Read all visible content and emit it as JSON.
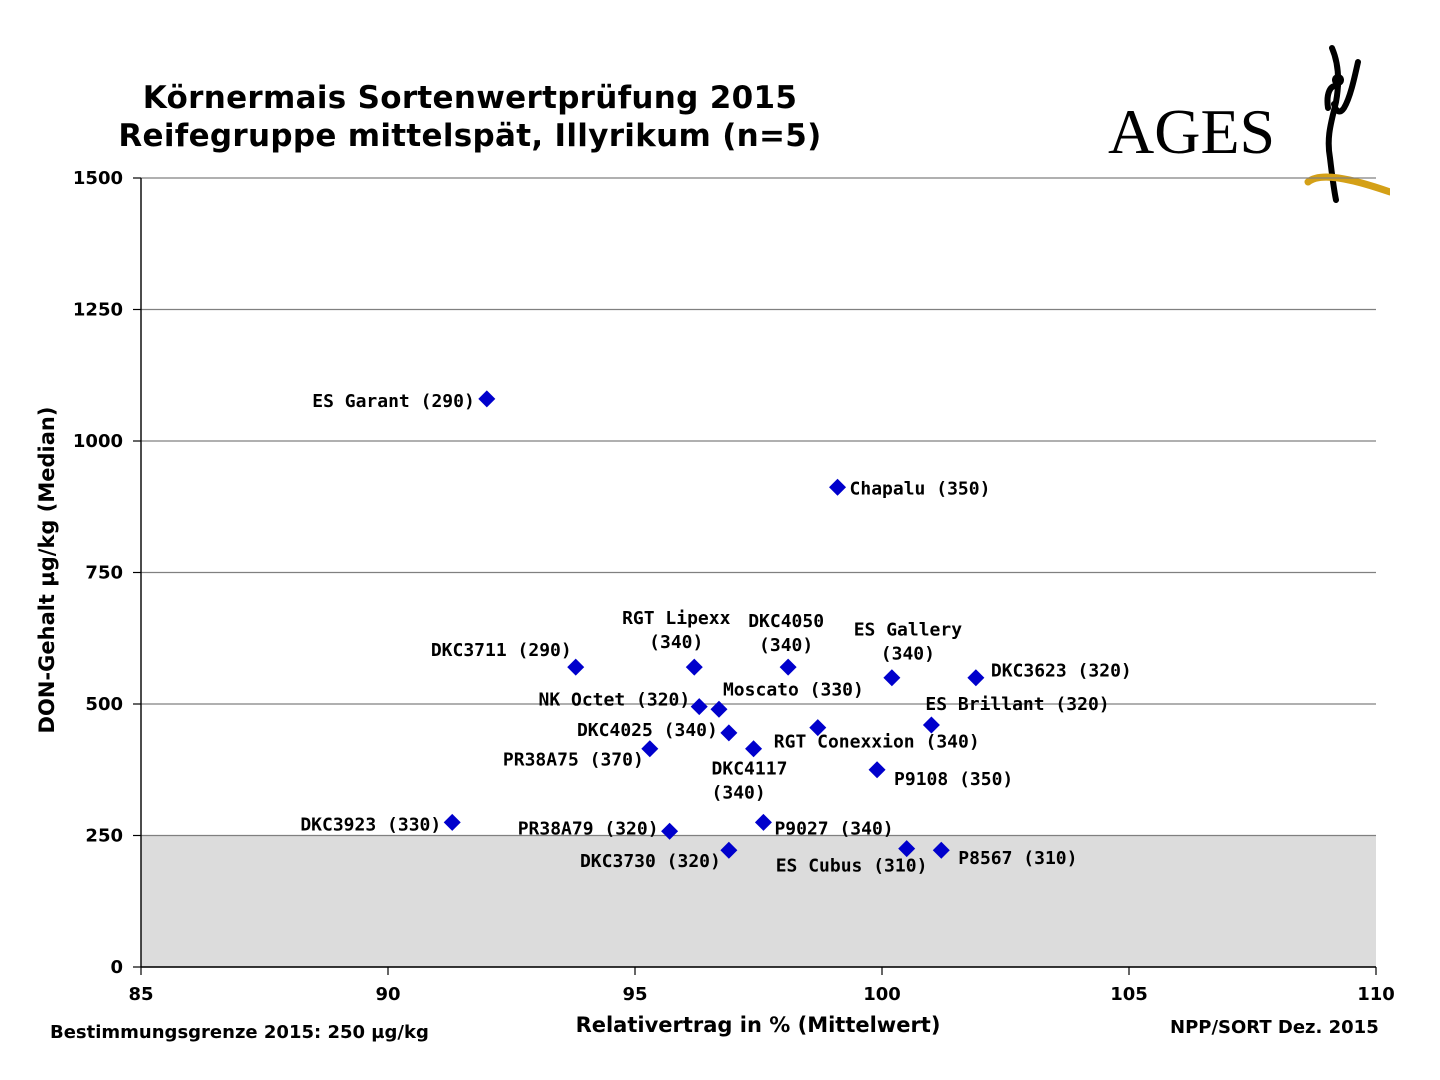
{
  "title_line1": "Körnermais Sortenwertprüfung 2015",
  "title_line2": "Reifegruppe mittelspät, Illyrikum (n=5)",
  "logo_text": "AGES",
  "footer_left": "Bestimmungsgrenze 2015: 250 µg/kg",
  "footer_right": "NPP/SORT Dez. 2015",
  "colors": {
    "marker": "#0000cc",
    "band": "#dcdcdc",
    "grid": "#808080",
    "logo_gold": "#d4a017"
  },
  "chart_data": {
    "type": "scatter",
    "xlabel": "Relativertrag in % (Mittelwert)",
    "ylabel": "DON-Gehalt µg/kg (Median)",
    "xlim": [
      85,
      110
    ],
    "ylim": [
      0,
      1500
    ],
    "x_ticks": [
      "85",
      "90",
      "95",
      "100",
      "105",
      "110"
    ],
    "y_ticks": [
      "0",
      "250",
      "500",
      "750",
      "1000",
      "1250",
      "1500"
    ],
    "grid": "horizontal",
    "shaded_band": {
      "from": 0,
      "to": 250
    },
    "points": [
      {
        "x": 92.0,
        "y": 1080,
        "label": [
          "ES Garant (290)"
        ]
      },
      {
        "x": 99.1,
        "y": 912,
        "label": [
          "Chapalu (350)"
        ]
      },
      {
        "x": 93.8,
        "y": 570,
        "label": [
          "DKC3711 (290)"
        ]
      },
      {
        "x": 96.2,
        "y": 570,
        "label": [
          "RGT Lipexx",
          "(340)"
        ]
      },
      {
        "x": 98.1,
        "y": 570,
        "label": [
          "DKC4050",
          "(340)"
        ]
      },
      {
        "x": 100.2,
        "y": 550,
        "label": [
          "ES Gallery",
          "(340)"
        ]
      },
      {
        "x": 101.9,
        "y": 550,
        "label": [
          "DKC3623 (320)"
        ]
      },
      {
        "x": 96.3,
        "y": 495,
        "label": [
          "NK Octet (320)"
        ]
      },
      {
        "x": 96.7,
        "y": 490,
        "label": [
          "Moscato (330)"
        ]
      },
      {
        "x": 96.9,
        "y": 445,
        "label": [
          "DKC4025 (340)"
        ]
      },
      {
        "x": 98.7,
        "y": 455,
        "label": [
          "RGT Conexxion (340)"
        ]
      },
      {
        "x": 101.0,
        "y": 460,
        "label": [
          "ES Brillant (320)"
        ]
      },
      {
        "x": 95.3,
        "y": 415,
        "label": [
          "PR38A75 (370)"
        ]
      },
      {
        "x": 97.4,
        "y": 415,
        "label": [
          "DKC4117",
          "(340)"
        ]
      },
      {
        "x": 99.9,
        "y": 375,
        "label": [
          "P9108 (350)"
        ]
      },
      {
        "x": 91.3,
        "y": 275,
        "label": [
          "DKC3923 (330)"
        ]
      },
      {
        "x": 95.7,
        "y": 258,
        "label": [
          "PR38A79 (320)"
        ]
      },
      {
        "x": 97.6,
        "y": 275,
        "label": [
          "P9027 (340)"
        ]
      },
      {
        "x": 96.9,
        "y": 222,
        "label": [
          "DKC3730 (320)"
        ]
      },
      {
        "x": 100.5,
        "y": 225,
        "label": [
          "ES Cubus (310)"
        ]
      },
      {
        "x": 101.2,
        "y": 222,
        "label": [
          "P8567 (310)"
        ]
      }
    ]
  }
}
